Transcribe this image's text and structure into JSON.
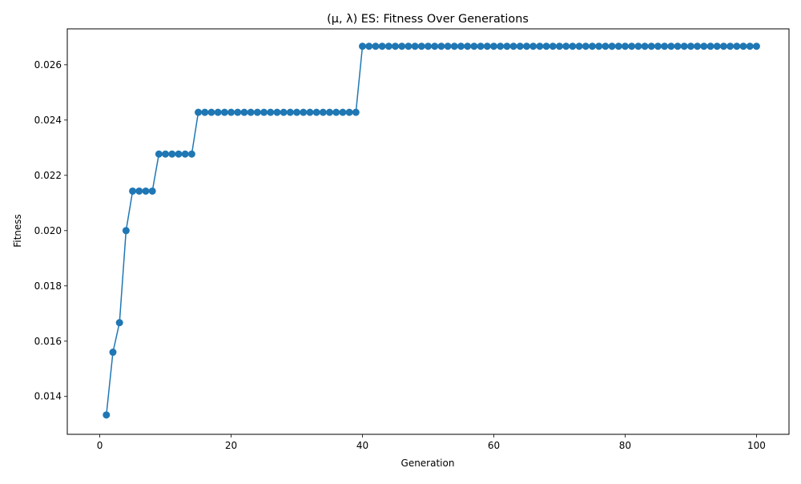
{
  "chart_data": {
    "type": "line",
    "title": "(μ, λ) ES: Fitness Over Generations",
    "xlabel": "Generation",
    "ylabel": "Fitness",
    "xlim": [
      -4.95,
      104.95
    ],
    "ylim": [
      0.01263,
      0.0273
    ],
    "xticks": [
      0,
      20,
      40,
      60,
      80,
      100
    ],
    "xtick_labels": [
      "0",
      "20",
      "40",
      "60",
      "80",
      "100"
    ],
    "yticks": [
      0.014,
      0.016,
      0.018,
      0.02,
      0.022,
      0.024,
      0.026
    ],
    "ytick_labels": [
      "0.014",
      "0.016",
      "0.018",
      "0.020",
      "0.022",
      "0.024",
      "0.026"
    ],
    "grid": false,
    "legend": "none",
    "series": [
      {
        "color": "#1f77b4",
        "marker": "circle",
        "steps": [
          {
            "from": 1,
            "to": 1,
            "y": 0.01333
          },
          {
            "from": 2,
            "to": 2,
            "y": 0.0156
          },
          {
            "from": 3,
            "to": 3,
            "y": 0.01667
          },
          {
            "from": 4,
            "to": 4,
            "y": 0.02
          },
          {
            "from": 5,
            "to": 8,
            "y": 0.02143
          },
          {
            "from": 9,
            "to": 14,
            "y": 0.02277
          },
          {
            "from": 15,
            "to": 39,
            "y": 0.02428
          },
          {
            "from": 40,
            "to": 100,
            "y": 0.02667
          }
        ]
      }
    ]
  }
}
